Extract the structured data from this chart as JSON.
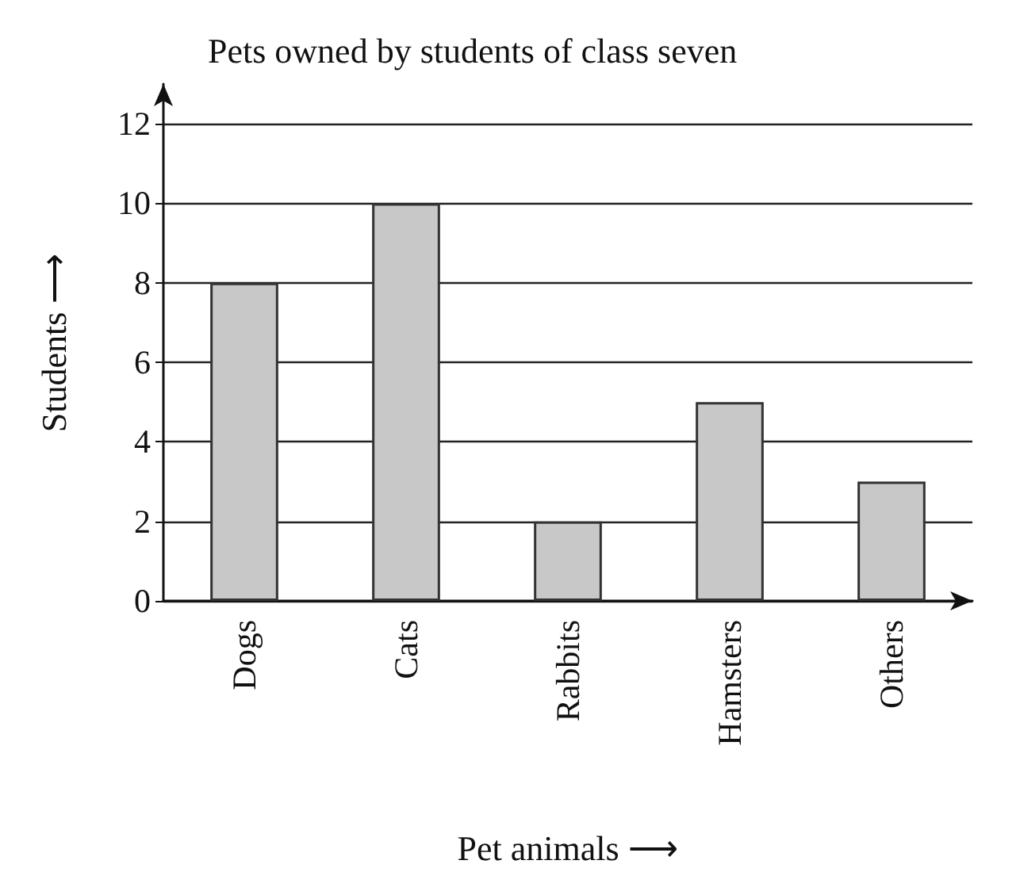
{
  "chart_data": {
    "type": "bar",
    "title": "Pets owned by students of class seven",
    "xlabel": "Pet animals ⟶",
    "ylabel": "Students ⟶",
    "categories": [
      "Dogs",
      "Cats",
      "Rabbits",
      "Hamsters",
      "Others"
    ],
    "values": [
      8,
      10,
      2,
      5,
      3
    ],
    "color": "#c8c8c8",
    "ylim": [
      0,
      13
    ],
    "yticks": [
      0,
      2,
      4,
      6,
      8,
      10,
      12
    ],
    "grid": "y"
  }
}
